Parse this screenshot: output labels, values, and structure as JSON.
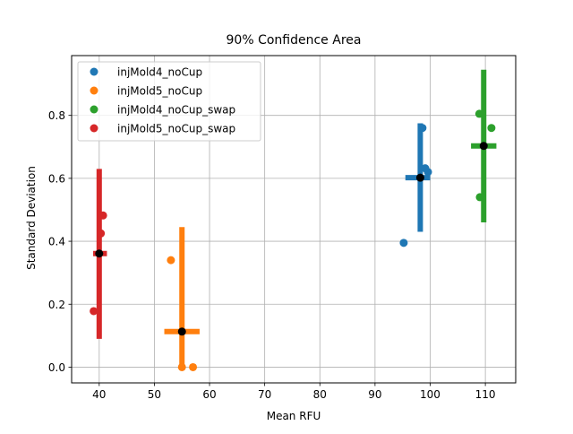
{
  "chart_data": {
    "type": "scatter",
    "title": "90% Confidence Area",
    "xlabel": "Mean RFU",
    "ylabel": "Standard Deviation",
    "xlim": [
      35,
      115.5
    ],
    "ylim": [
      -0.05,
      0.99
    ],
    "xticks": [
      40,
      50,
      60,
      70,
      80,
      90,
      100,
      110
    ],
    "yticks": [
      0.0,
      0.2,
      0.4,
      0.6,
      0.8
    ],
    "grid": true,
    "legend_position": "top-left",
    "series": [
      {
        "name": "injMold4_noCup",
        "color": "#1f77b4",
        "points": [
          [
            95.2,
            0.395
          ],
          [
            98.6,
            0.76
          ],
          [
            99.1,
            0.632
          ],
          [
            99.6,
            0.62
          ]
        ],
        "mean": [
          98.2,
          0.602
        ],
        "interval_x": [
          95.5,
          100.0
        ],
        "interval_y": [
          0.43,
          0.775
        ]
      },
      {
        "name": "injMold5_noCup",
        "color": "#ff7f0e",
        "points": [
          [
            53.0,
            0.34
          ],
          [
            55.0,
            0.0
          ],
          [
            57.0,
            0.0
          ]
        ],
        "mean": [
          55.0,
          0.113
        ],
        "interval_x": [
          51.8,
          58.2
        ],
        "interval_y": [
          0.0,
          0.445
        ]
      },
      {
        "name": "injMold4_noCup_swap",
        "color": "#2ca02c",
        "points": [
          [
            108.9,
            0.805
          ],
          [
            109.0,
            0.54
          ],
          [
            111.1,
            0.76
          ]
        ],
        "mean": [
          109.7,
          0.703
        ],
        "interval_x": [
          107.4,
          112.0
        ],
        "interval_y": [
          0.46,
          0.945
        ]
      },
      {
        "name": "injMold5_noCup_swap",
        "color": "#d62728",
        "points": [
          [
            39.0,
            0.178
          ],
          [
            40.3,
            0.425
          ],
          [
            40.7,
            0.482
          ]
        ],
        "mean": [
          40.0,
          0.361
        ],
        "interval_x": [
          38.9,
          41.4
        ],
        "interval_y": [
          0.09,
          0.63
        ]
      }
    ],
    "mean_marker_color": "#000000"
  }
}
